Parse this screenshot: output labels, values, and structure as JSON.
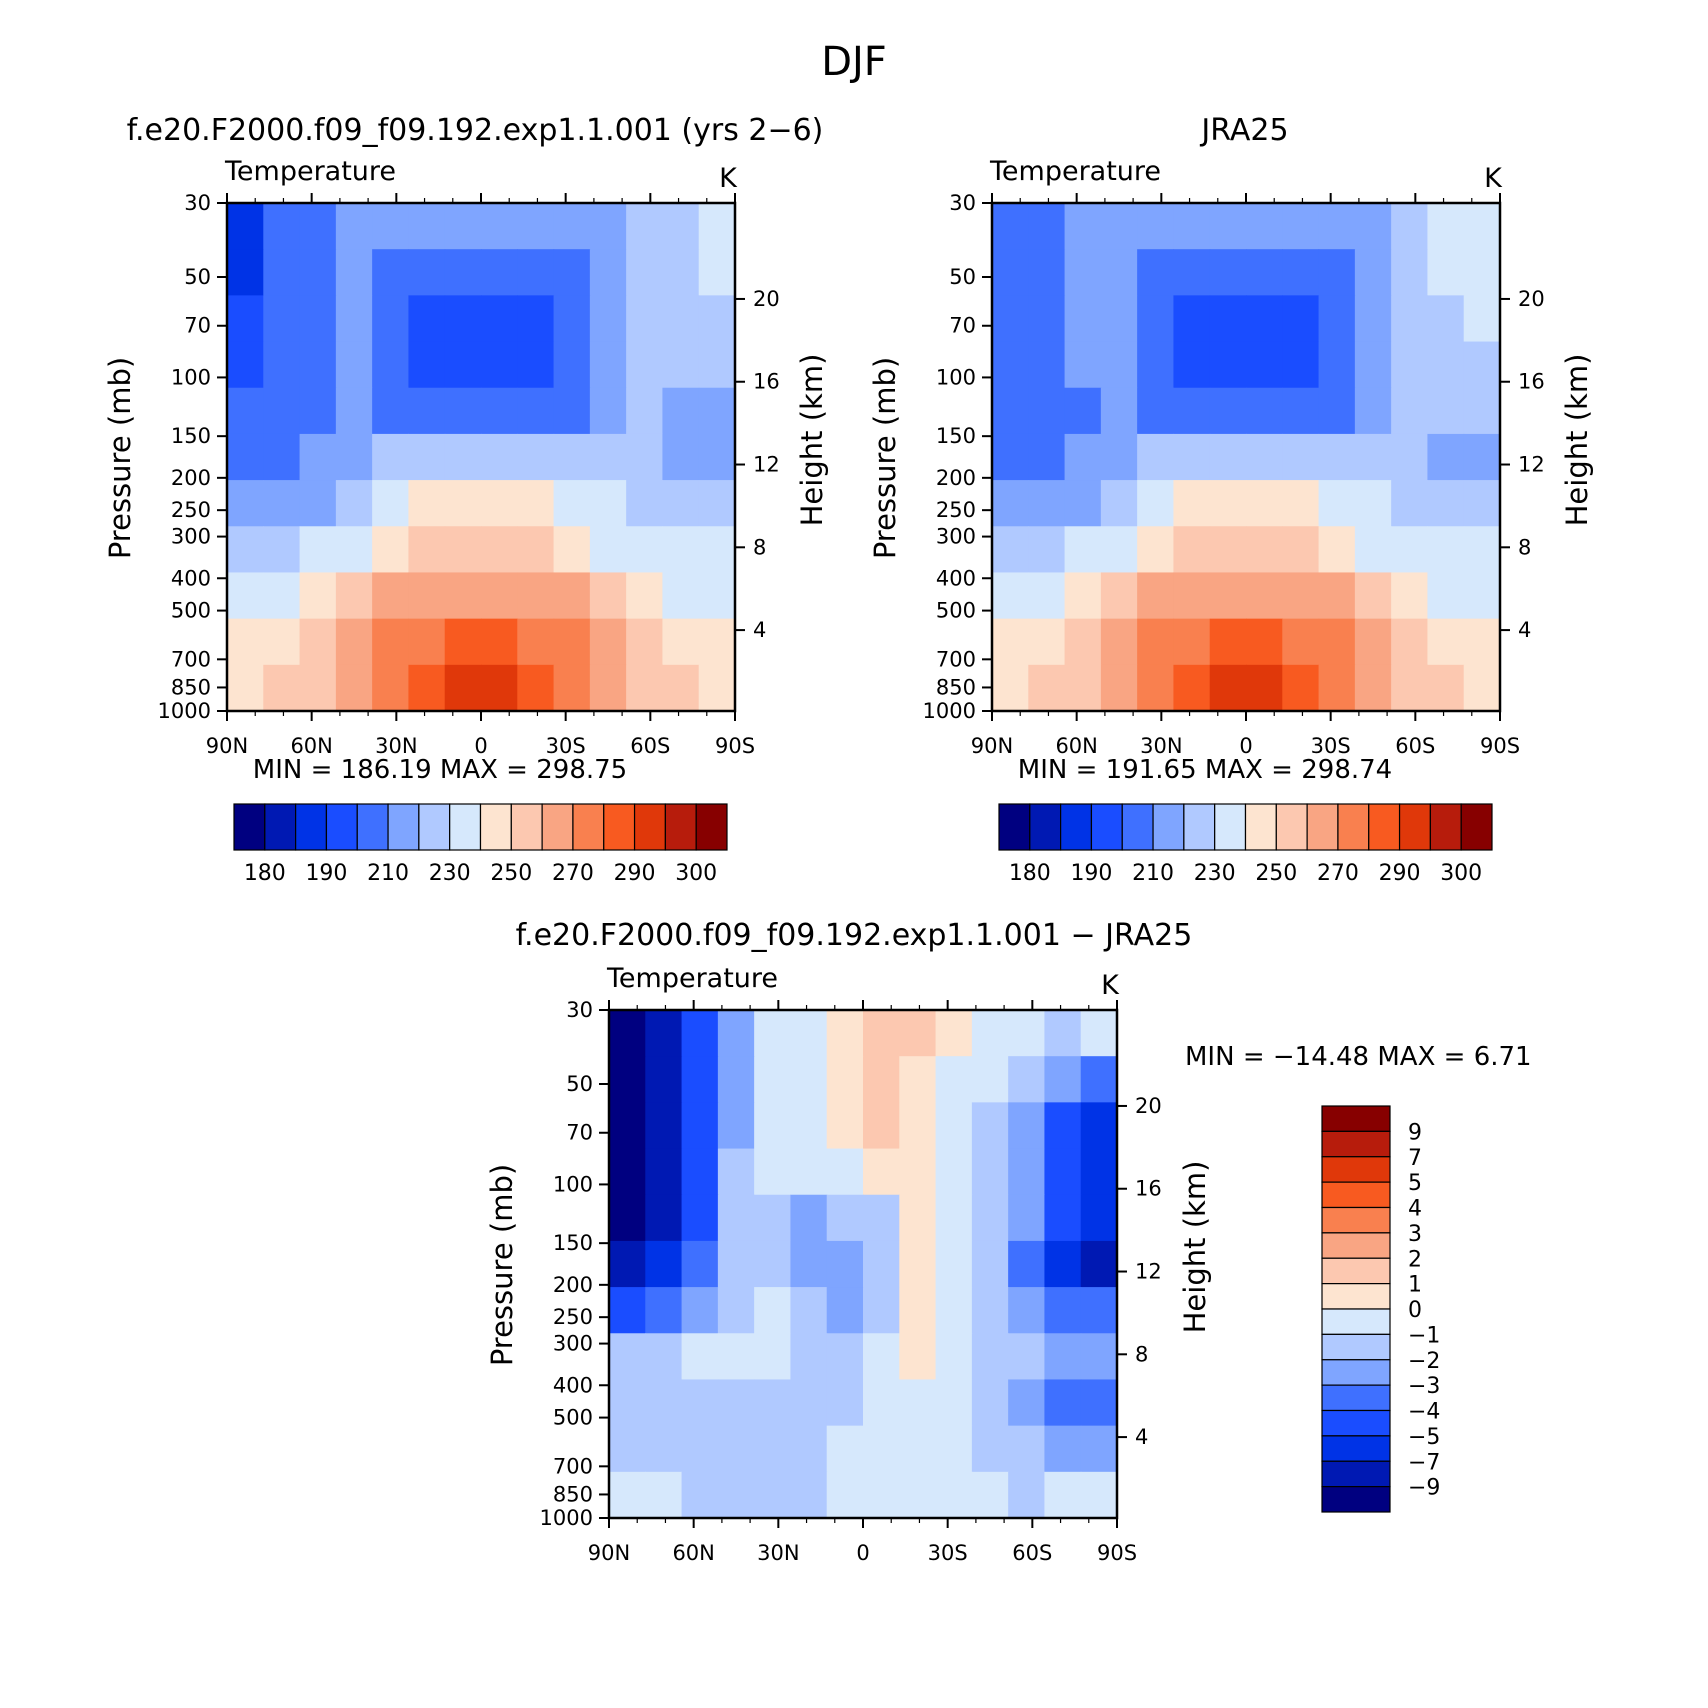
{
  "figure_title": "DJF",
  "colors": {
    "abs_palette": [
      "#000080",
      "#0019b3",
      "#0033e6",
      "#1a4dff",
      "#3f70ff",
      "#7fa5ff",
      "#b0c9ff",
      "#d6e8fc",
      "#fde4d0",
      "#fcc8b0",
      "#f9a583",
      "#f9804f",
      "#f85a20",
      "#e0380a",
      "#b71c0c",
      "#870000"
    ],
    "diff_palette": [
      "#000080",
      "#0019b3",
      "#0033e6",
      "#1a4dff",
      "#3f70ff",
      "#7fa5ff",
      "#b0c9ff",
      "#d6e8fc",
      "#fde4d0",
      "#fcc8b0",
      "#f9a583",
      "#f9804f",
      "#f85a20",
      "#e0380a",
      "#b71c0c",
      "#870000"
    ]
  },
  "chart_data": [
    {
      "type": "heatmap",
      "title": "f.e20.F2000.f09_f09.192.exp1.1.001 (yrs 2−6)",
      "left_label": "Temperature",
      "right_label": "K",
      "ylabel": "Pressure (mb)",
      "ylabel_right": "Height (km)",
      "x_ticks": [
        "90N",
        "60N",
        "30N",
        "0",
        "30S",
        "60S",
        "90S"
      ],
      "y_ticks": [
        "30",
        "50",
        "70",
        "100",
        "150",
        "200",
        "250",
        "300",
        "400",
        "500",
        "700",
        "850",
        "1000"
      ],
      "y_ticks_right": [
        "20",
        "16",
        "12",
        "8",
        "4"
      ],
      "min_max": "MIN = 186.19   MAX = 298.75",
      "colorbar_labels": [
        "180",
        "190",
        "210",
        "230",
        "250",
        "270",
        "290",
        "300"
      ],
      "rows": [
        [
          2,
          4,
          4,
          5,
          5,
          5,
          5,
          5,
          5,
          5,
          5,
          6,
          6,
          7
        ],
        [
          2,
          4,
          4,
          5,
          4,
          4,
          4,
          4,
          4,
          4,
          5,
          6,
          6,
          7
        ],
        [
          3,
          4,
          4,
          5,
          4,
          3,
          3,
          3,
          3,
          4,
          5,
          6,
          6,
          6
        ],
        [
          3,
          4,
          4,
          5,
          4,
          3,
          3,
          3,
          3,
          4,
          5,
          6,
          6,
          6
        ],
        [
          4,
          4,
          4,
          5,
          4,
          4,
          4,
          4,
          4,
          4,
          5,
          6,
          5,
          5
        ],
        [
          4,
          4,
          5,
          5,
          6,
          6,
          6,
          6,
          6,
          6,
          6,
          6,
          5,
          5
        ],
        [
          5,
          5,
          5,
          6,
          7,
          8,
          8,
          8,
          8,
          7,
          7,
          6,
          6,
          6
        ],
        [
          6,
          6,
          7,
          7,
          8,
          9,
          9,
          9,
          9,
          8,
          7,
          7,
          7,
          7
        ],
        [
          7,
          7,
          8,
          9,
          10,
          10,
          10,
          10,
          10,
          10,
          9,
          8,
          7,
          7
        ],
        [
          8,
          8,
          9,
          10,
          11,
          11,
          12,
          12,
          11,
          11,
          10,
          9,
          8,
          8
        ],
        [
          8,
          9,
          9,
          10,
          11,
          12,
          13,
          13,
          12,
          11,
          10,
          9,
          9,
          8
        ]
      ]
    },
    {
      "type": "heatmap",
      "title": "JRA25",
      "left_label": "Temperature",
      "right_label": "K",
      "ylabel": "Pressure (mb)",
      "ylabel_right": "Height (km)",
      "x_ticks": [
        "90N",
        "60N",
        "30N",
        "0",
        "30S",
        "60S",
        "90S"
      ],
      "y_ticks": [
        "30",
        "50",
        "70",
        "100",
        "150",
        "200",
        "250",
        "300",
        "400",
        "500",
        "700",
        "850",
        "1000"
      ],
      "y_ticks_right": [
        "20",
        "16",
        "12",
        "8",
        "4"
      ],
      "min_max": "MIN = 191.65   MAX = 298.74",
      "colorbar_labels": [
        "180",
        "190",
        "210",
        "230",
        "250",
        "270",
        "290",
        "300"
      ],
      "rows": [
        [
          4,
          4,
          5,
          5,
          5,
          5,
          5,
          5,
          5,
          5,
          5,
          6,
          7,
          7
        ],
        [
          4,
          4,
          5,
          5,
          4,
          4,
          4,
          4,
          4,
          4,
          5,
          6,
          7,
          7
        ],
        [
          4,
          4,
          5,
          5,
          4,
          3,
          3,
          3,
          3,
          4,
          5,
          6,
          6,
          7
        ],
        [
          4,
          4,
          5,
          5,
          4,
          3,
          3,
          3,
          3,
          4,
          5,
          6,
          6,
          6
        ],
        [
          4,
          4,
          4,
          5,
          4,
          4,
          4,
          4,
          4,
          4,
          5,
          6,
          6,
          6
        ],
        [
          4,
          4,
          5,
          5,
          6,
          6,
          6,
          6,
          6,
          6,
          6,
          6,
          5,
          5
        ],
        [
          5,
          5,
          5,
          6,
          7,
          8,
          8,
          8,
          8,
          7,
          7,
          6,
          6,
          6
        ],
        [
          6,
          6,
          7,
          7,
          8,
          9,
          9,
          9,
          9,
          8,
          7,
          7,
          7,
          7
        ],
        [
          7,
          7,
          8,
          9,
          10,
          10,
          10,
          10,
          10,
          10,
          9,
          8,
          7,
          7
        ],
        [
          8,
          8,
          9,
          10,
          11,
          11,
          12,
          12,
          11,
          11,
          10,
          9,
          8,
          8
        ],
        [
          8,
          9,
          9,
          10,
          11,
          12,
          13,
          13,
          12,
          11,
          10,
          9,
          9,
          8
        ]
      ]
    },
    {
      "type": "heatmap",
      "title": "f.e20.F2000.f09_f09.192.exp1.1.001 − JRA25",
      "left_label": "Temperature",
      "right_label": "K",
      "ylabel": "Pressure (mb)",
      "ylabel_right": "Height (km)",
      "x_ticks": [
        "90N",
        "60N",
        "30N",
        "0",
        "30S",
        "60S",
        "90S"
      ],
      "y_ticks": [
        "30",
        "50",
        "70",
        "100",
        "150",
        "200",
        "250",
        "300",
        "400",
        "500",
        "700",
        "850",
        "1000"
      ],
      "y_ticks_right": [
        "20",
        "16",
        "12",
        "8",
        "4"
      ],
      "min_max": "MIN = −14.48   MAX =    6.71",
      "colorbar_labels": [
        "9",
        "7",
        "5",
        "4",
        "3",
        "2",
        "1",
        "0",
        "−1",
        "−2",
        "−3",
        "−4",
        "−5",
        "−7",
        "−9"
      ],
      "rows": [
        [
          0,
          1,
          3,
          5,
          7,
          7,
          8,
          9,
          9,
          8,
          7,
          7,
          6,
          7
        ],
        [
          0,
          1,
          3,
          5,
          7,
          7,
          8,
          9,
          8,
          7,
          7,
          6,
          5,
          4
        ],
        [
          0,
          1,
          3,
          5,
          7,
          7,
          8,
          9,
          8,
          7,
          6,
          5,
          3,
          2
        ],
        [
          0,
          1,
          3,
          6,
          7,
          7,
          7,
          8,
          8,
          7,
          6,
          5,
          3,
          2
        ],
        [
          0,
          1,
          3,
          6,
          6,
          5,
          6,
          6,
          8,
          7,
          6,
          5,
          3,
          2
        ],
        [
          1,
          2,
          4,
          6,
          6,
          5,
          5,
          6,
          8,
          7,
          6,
          4,
          2,
          1
        ],
        [
          3,
          4,
          5,
          6,
          7,
          6,
          5,
          6,
          8,
          7,
          6,
          5,
          4,
          4
        ],
        [
          6,
          6,
          7,
          7,
          7,
          6,
          6,
          7,
          8,
          7,
          6,
          6,
          5,
          5
        ],
        [
          6,
          6,
          6,
          6,
          6,
          6,
          6,
          7,
          7,
          7,
          6,
          5,
          4,
          4
        ],
        [
          6,
          6,
          6,
          6,
          6,
          6,
          7,
          7,
          7,
          7,
          6,
          6,
          5,
          5
        ],
        [
          7,
          7,
          6,
          6,
          6,
          6,
          7,
          7,
          7,
          7,
          7,
          6,
          7,
          7
        ]
      ]
    }
  ]
}
